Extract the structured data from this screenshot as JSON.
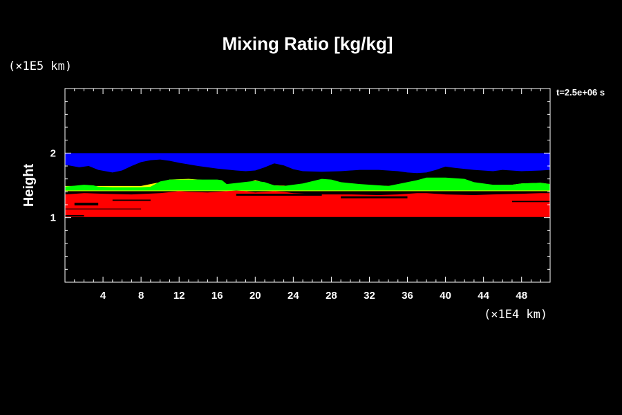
{
  "chart_data": {
    "type": "heatmap",
    "title": "Mixing Ratio [kg/kg]",
    "ylabel": "Height",
    "y_unit": "(×1E5 km)",
    "x_unit": "(×1E4 km)",
    "time_label": "t=2.5e+06 s",
    "xlim": [
      0,
      51
    ],
    "ylim": [
      0,
      3
    ],
    "x_ticks": [
      4,
      8,
      12,
      16,
      20,
      24,
      28,
      32,
      36,
      40,
      44,
      48
    ],
    "y_ticks": [
      1,
      2
    ],
    "x_minor_step": 1,
    "y_minor_step": 0.2,
    "colors": {
      "background": "#000000",
      "axes": "#ffffff",
      "blue": "#0000ff",
      "yellow": "#ffff00",
      "green": "#00ff00",
      "red": "#ff0000"
    },
    "layers": [
      {
        "color": "blue",
        "top": [
          [
            0,
            2.0
          ],
          [
            51,
            2.0
          ]
        ],
        "bottom": [
          [
            0,
            1.82
          ],
          [
            1.5,
            1.78
          ],
          [
            2.5,
            1.8
          ],
          [
            3.5,
            1.74
          ],
          [
            5,
            1.7
          ],
          [
            6,
            1.73
          ],
          [
            7,
            1.8
          ],
          [
            8,
            1.86
          ],
          [
            9,
            1.89
          ],
          [
            10,
            1.9
          ],
          [
            11,
            1.88
          ],
          [
            12,
            1.85
          ],
          [
            14,
            1.8
          ],
          [
            16,
            1.76
          ],
          [
            18,
            1.73
          ],
          [
            19,
            1.72
          ],
          [
            20,
            1.73
          ],
          [
            21,
            1.78
          ],
          [
            22,
            1.84
          ],
          [
            23,
            1.81
          ],
          [
            24,
            1.75
          ],
          [
            25,
            1.72
          ],
          [
            27,
            1.71
          ],
          [
            29,
            1.72
          ],
          [
            31,
            1.74
          ],
          [
            33,
            1.74
          ],
          [
            35,
            1.72
          ],
          [
            36,
            1.7
          ],
          [
            37,
            1.69
          ],
          [
            38,
            1.7
          ],
          [
            39,
            1.74
          ],
          [
            40,
            1.79
          ],
          [
            41,
            1.77
          ],
          [
            43,
            1.74
          ],
          [
            45,
            1.72
          ],
          [
            46,
            1.74
          ],
          [
            48,
            1.72
          ],
          [
            50,
            1.73
          ],
          [
            51,
            1.74
          ]
        ]
      },
      {
        "color": "yellow",
        "top": [
          [
            0,
            1.49
          ],
          [
            3,
            1.49
          ],
          [
            8,
            1.49
          ],
          [
            10,
            1.55
          ],
          [
            11,
            1.59
          ],
          [
            13,
            1.6
          ],
          [
            15,
            1.58
          ],
          [
            16,
            1.56
          ],
          [
            17,
            1.51
          ],
          [
            19,
            1.53
          ],
          [
            20,
            1.58
          ],
          [
            21,
            1.54
          ],
          [
            22,
            1.5
          ],
          [
            24,
            1.49
          ],
          [
            26,
            1.55
          ],
          [
            27,
            1.58
          ],
          [
            28,
            1.57
          ],
          [
            29,
            1.52
          ],
          [
            34,
            1.49
          ],
          [
            37,
            1.55
          ],
          [
            38,
            1.6
          ],
          [
            40,
            1.61
          ],
          [
            41,
            1.58
          ],
          [
            42,
            1.54
          ],
          [
            44,
            1.5
          ],
          [
            47,
            1.51
          ],
          [
            48,
            1.53
          ],
          [
            50,
            1.54
          ],
          [
            51,
            1.52
          ]
        ],
        "bottom": [
          [
            0,
            1.41
          ],
          [
            51,
            1.41
          ]
        ]
      },
      {
        "color": "green",
        "top": [
          [
            0,
            1.48
          ],
          [
            2,
            1.51
          ],
          [
            3,
            1.5
          ],
          [
            3.5,
            1.48
          ],
          [
            5,
            1.47
          ],
          [
            8,
            1.47
          ],
          [
            9,
            1.48
          ],
          [
            10,
            1.56
          ],
          [
            11,
            1.59
          ],
          [
            16,
            1.59
          ],
          [
            16.5,
            1.58
          ],
          [
            17,
            1.52
          ],
          [
            20,
            1.57
          ],
          [
            21,
            1.55
          ],
          [
            22,
            1.5
          ],
          [
            23,
            1.49
          ],
          [
            25,
            1.53
          ],
          [
            27,
            1.6
          ],
          [
            28,
            1.59
          ],
          [
            29,
            1.55
          ],
          [
            31,
            1.52
          ],
          [
            34,
            1.49
          ],
          [
            37,
            1.58
          ],
          [
            38,
            1.62
          ],
          [
            40,
            1.62
          ],
          [
            42,
            1.6
          ],
          [
            43,
            1.55
          ],
          [
            45,
            1.51
          ],
          [
            47,
            1.51
          ],
          [
            48,
            1.53
          ],
          [
            50,
            1.54
          ],
          [
            51,
            1.52
          ]
        ],
        "bottom": [
          [
            0,
            1.42
          ],
          [
            51,
            1.42
          ]
        ]
      },
      {
        "color": "red",
        "top": [
          [
            0,
            1.36
          ],
          [
            2,
            1.38
          ],
          [
            4,
            1.37
          ],
          [
            7,
            1.36
          ],
          [
            10,
            1.38
          ],
          [
            12,
            1.41
          ],
          [
            13,
            1.4
          ],
          [
            15,
            1.39
          ],
          [
            16,
            1.4
          ],
          [
            18,
            1.42
          ],
          [
            19,
            1.41
          ],
          [
            20,
            1.39
          ],
          [
            21,
            1.4
          ],
          [
            22,
            1.41
          ],
          [
            23,
            1.4
          ],
          [
            24,
            1.38
          ],
          [
            27,
            1.36
          ],
          [
            30,
            1.36
          ],
          [
            33,
            1.35
          ],
          [
            35,
            1.36
          ],
          [
            37,
            1.38
          ],
          [
            38,
            1.38
          ],
          [
            40,
            1.36
          ],
          [
            43,
            1.35
          ],
          [
            45,
            1.36
          ],
          [
            48,
            1.37
          ],
          [
            50,
            1.38
          ],
          [
            51,
            1.38
          ]
        ],
        "bottom": [
          [
            0,
            1.01
          ],
          [
            51,
            1.01
          ]
        ]
      }
    ],
    "dark_features": [
      {
        "x": [
          1,
          3.5
        ],
        "y": [
          1.19,
          1.23
        ]
      },
      {
        "x": [
          0,
          8
        ],
        "y": [
          1.13,
          1.14
        ]
      },
      {
        "x": [
          5,
          9
        ],
        "y": [
          1.26,
          1.28
        ]
      },
      {
        "x": [
          18,
          27
        ],
        "y": [
          1.34,
          1.37
        ]
      },
      {
        "x": [
          29,
          36
        ],
        "y": [
          1.3,
          1.33
        ]
      },
      {
        "x": [
          47,
          51
        ],
        "y": [
          1.24,
          1.26
        ]
      },
      {
        "x": [
          0,
          2
        ],
        "y": [
          1.02,
          1.04
        ]
      }
    ]
  }
}
